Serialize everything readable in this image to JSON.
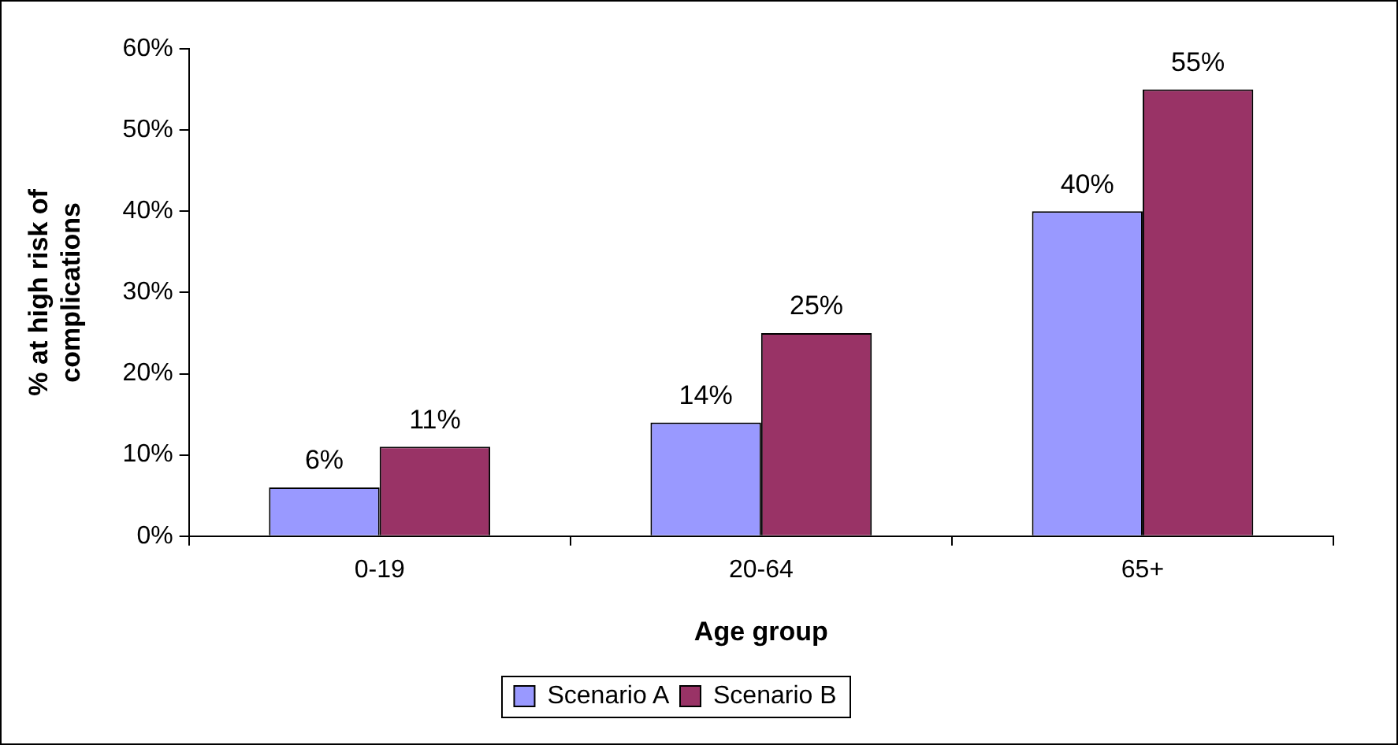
{
  "chart_data": {
    "type": "bar",
    "xlabel": "Age group",
    "ylabel": "% at high risk of complications",
    "categories": [
      "0-19",
      "20-64",
      "65+"
    ],
    "series": [
      {
        "name": "Scenario A",
        "color": "#9999ff",
        "values": [
          6,
          14,
          40
        ],
        "value_labels": [
          "6%",
          "14%",
          "40%"
        ]
      },
      {
        "name": "Scenario B",
        "color": "#993366",
        "values": [
          11,
          25,
          55
        ],
        "value_labels": [
          "11%",
          "25%",
          "55%"
        ]
      }
    ],
    "ylim": [
      0,
      60
    ],
    "yticks": [
      {
        "value": 0,
        "label": "0%"
      },
      {
        "value": 10,
        "label": "10%"
      },
      {
        "value": 20,
        "label": "20%"
      },
      {
        "value": 30,
        "label": "30%"
      },
      {
        "value": 40,
        "label": "40%"
      },
      {
        "value": 50,
        "label": "50%"
      },
      {
        "value": 60,
        "label": "60%"
      }
    ],
    "grid": false,
    "legend": "bottom"
  }
}
